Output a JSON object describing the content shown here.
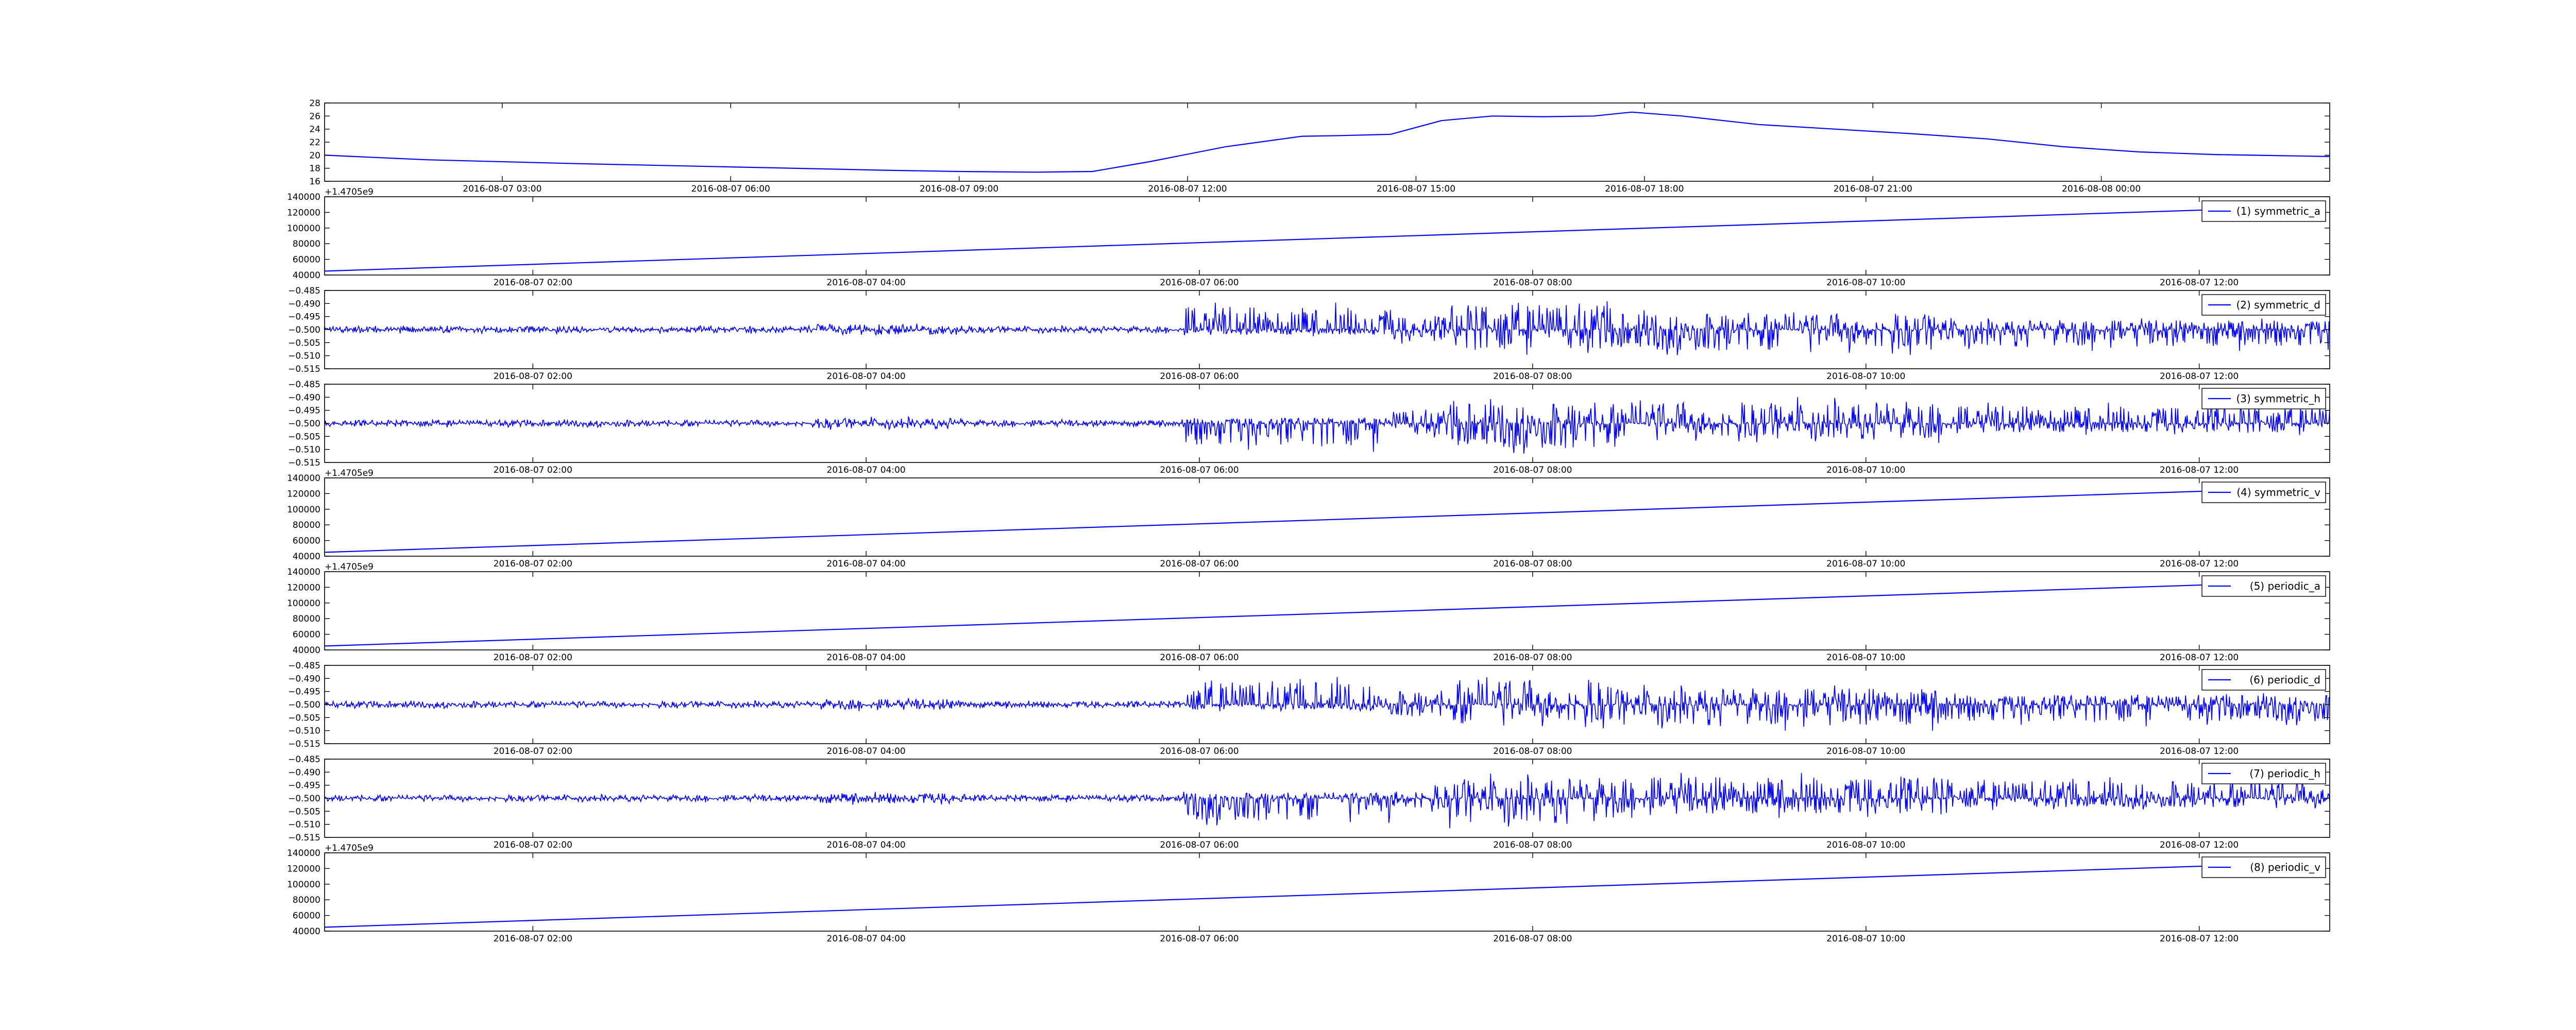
{
  "figure": {
    "background": "#ffffff",
    "line_color": "#0000ff"
  },
  "chart_data": [
    {
      "type": "line",
      "id": "temperature",
      "title": "",
      "xlabel": "",
      "ylabel": "",
      "ylim": [
        16,
        28
      ],
      "yticks": [
        16,
        18,
        20,
        22,
        24,
        26,
        28
      ],
      "ytick_labels": [
        "16",
        "18",
        "20",
        "22",
        "24",
        "26",
        "28"
      ],
      "xlim": [
        "2016-08-07 00:40",
        "2016-08-08 03:00"
      ],
      "xtick_labels": [
        "2016-08-07 03:00",
        "2016-08-07 06:00",
        "2016-08-07 09:00",
        "2016-08-07 12:00",
        "2016-08-07 15:00",
        "2016-08-07 18:00",
        "2016-08-07 21:00",
        "2016-08-08 00:00"
      ],
      "xticks": [
        "2016-08-07 03:00",
        "2016-08-07 06:00",
        "2016-08-07 09:00",
        "2016-08-07 12:00",
        "2016-08-07 15:00",
        "2016-08-07 18:00",
        "2016-08-07 21:00",
        "2016-08-08 00:00"
      ],
      "y_offset_label": "",
      "legend": "",
      "series": [
        {
          "x": [
            "2016-08-07 00:40",
            "2016-08-07 02:00",
            "2016-08-07 04:00",
            "2016-08-07 06:00",
            "2016-08-07 08:00",
            "2016-08-07 09:00",
            "2016-08-07 10:00",
            "2016-08-07 10:45",
            "2016-08-07 11:30",
            "2016-08-07 12:30",
            "2016-08-07 13:30",
            "2016-08-07 14:00",
            "2016-08-07 14:40",
            "2016-08-07 15:20",
            "2016-08-07 16:00",
            "2016-08-07 16:40",
            "2016-08-07 17:20",
            "2016-08-07 17:50",
            "2016-08-07 18:30",
            "2016-08-07 19:30",
            "2016-08-07 20:30",
            "2016-08-07 21:30",
            "2016-08-07 22:30",
            "2016-08-07 23:30",
            "2016-08-08 00:30",
            "2016-08-08 01:30",
            "2016-08-08 03:00"
          ],
          "y": [
            20.0,
            19.3,
            18.7,
            18.2,
            17.7,
            17.5,
            17.4,
            17.5,
            19.0,
            21.3,
            22.9,
            23.0,
            23.2,
            25.3,
            26.0,
            25.9,
            26.0,
            26.6,
            26.0,
            24.7,
            24.0,
            23.3,
            22.5,
            21.3,
            20.5,
            20.1,
            19.8
          ]
        }
      ]
    },
    {
      "type": "line",
      "id": "symmetric_a",
      "ylim": [
        40000,
        140000
      ],
      "yticks": [
        40000,
        60000,
        80000,
        100000,
        120000,
        140000
      ],
      "ytick_labels": [
        "40000",
        "60000",
        "80000",
        "100000",
        "120000",
        "140000"
      ],
      "y_offset_label": "+1.4705e9",
      "xlim": [
        "2016-08-07 00:45",
        "2016-08-07 12:47"
      ],
      "xtick_labels": [
        "2016-08-07 02:00",
        "2016-08-07 04:00",
        "2016-08-07 06:00",
        "2016-08-07 08:00",
        "2016-08-07 10:00",
        "2016-08-07 12:00"
      ],
      "xticks": [
        "2016-08-07 02:00",
        "2016-08-07 04:00",
        "2016-08-07 06:00",
        "2016-08-07 08:00",
        "2016-08-07 10:00",
        "2016-08-07 12:00"
      ],
      "legend": "(1) symmetric_a",
      "series": [
        {
          "name": "(1) symmetric_a",
          "x": [
            "2016-08-07 00:45",
            "2016-08-07 12:45"
          ],
          "y": [
            45000,
            128000
          ]
        }
      ]
    },
    {
      "type": "line",
      "id": "symmetric_d",
      "ylim": [
        -0.515,
        -0.485
      ],
      "yticks": [
        -0.515,
        -0.51,
        -0.505,
        -0.5,
        -0.495,
        -0.49,
        -0.485
      ],
      "ytick_labels": [
        "−0.515",
        "−0.510",
        "−0.505",
        "−0.500",
        "−0.495",
        "−0.490",
        "−0.485"
      ],
      "y_offset_label": "",
      "xlim": [
        "2016-08-07 00:45",
        "2016-08-07 12:47"
      ],
      "xtick_labels": [
        "2016-08-07 02:00",
        "2016-08-07 04:00",
        "2016-08-07 06:00",
        "2016-08-07 08:00",
        "2016-08-07 10:00",
        "2016-08-07 12:00"
      ],
      "xticks": [
        "2016-08-07 02:00",
        "2016-08-07 04:00",
        "2016-08-07 06:00",
        "2016-08-07 08:00",
        "2016-08-07 10:00",
        "2016-08-07 12:00"
      ],
      "legend": "(2) symmetric_d",
      "signal": {
        "baseline": -0.5,
        "pattern": "d"
      }
    },
    {
      "type": "line",
      "id": "symmetric_h",
      "ylim": [
        -0.515,
        -0.485
      ],
      "yticks": [
        -0.515,
        -0.51,
        -0.505,
        -0.5,
        -0.495,
        -0.49,
        -0.485
      ],
      "ytick_labels": [
        "−0.515",
        "−0.510",
        "−0.505",
        "−0.500",
        "−0.495",
        "−0.490",
        "−0.485"
      ],
      "y_offset_label": "",
      "xlim": [
        "2016-08-07 00:45",
        "2016-08-07 12:47"
      ],
      "xtick_labels": [
        "2016-08-07 02:00",
        "2016-08-07 04:00",
        "2016-08-07 06:00",
        "2016-08-07 08:00",
        "2016-08-07 10:00",
        "2016-08-07 12:00"
      ],
      "xticks": [
        "2016-08-07 02:00",
        "2016-08-07 04:00",
        "2016-08-07 06:00",
        "2016-08-07 08:00",
        "2016-08-07 10:00",
        "2016-08-07 12:00"
      ],
      "legend": "(3) symmetric_h",
      "signal": {
        "baseline": -0.5,
        "pattern": "h"
      }
    },
    {
      "type": "line",
      "id": "symmetric_v",
      "ylim": [
        40000,
        140000
      ],
      "yticks": [
        40000,
        60000,
        80000,
        100000,
        120000,
        140000
      ],
      "ytick_labels": [
        "40000",
        "60000",
        "80000",
        "100000",
        "120000",
        "140000"
      ],
      "y_offset_label": "+1.4705e9",
      "xlim": [
        "2016-08-07 00:45",
        "2016-08-07 12:47"
      ],
      "xtick_labels": [
        "2016-08-07 02:00",
        "2016-08-07 04:00",
        "2016-08-07 06:00",
        "2016-08-07 08:00",
        "2016-08-07 10:00",
        "2016-08-07 12:00"
      ],
      "xticks": [
        "2016-08-07 02:00",
        "2016-08-07 04:00",
        "2016-08-07 06:00",
        "2016-08-07 08:00",
        "2016-08-07 10:00",
        "2016-08-07 12:00"
      ],
      "legend": "(4) symmetric_v",
      "series": [
        {
          "name": "(4) symmetric_v",
          "x": [
            "2016-08-07 00:45",
            "2016-08-07 12:45"
          ],
          "y": [
            45000,
            128000
          ]
        }
      ]
    },
    {
      "type": "line",
      "id": "periodic_a",
      "ylim": [
        40000,
        140000
      ],
      "yticks": [
        40000,
        60000,
        80000,
        100000,
        120000,
        140000
      ],
      "ytick_labels": [
        "40000",
        "60000",
        "80000",
        "100000",
        "120000",
        "140000"
      ],
      "y_offset_label": "+1.4705e9",
      "xlim": [
        "2016-08-07 00:45",
        "2016-08-07 12:47"
      ],
      "xtick_labels": [
        "2016-08-07 02:00",
        "2016-08-07 04:00",
        "2016-08-07 06:00",
        "2016-08-07 08:00",
        "2016-08-07 10:00",
        "2016-08-07 12:00"
      ],
      "xticks": [
        "2016-08-07 02:00",
        "2016-08-07 04:00",
        "2016-08-07 06:00",
        "2016-08-07 08:00",
        "2016-08-07 10:00",
        "2016-08-07 12:00"
      ],
      "legend": "(5) periodic_a",
      "series": [
        {
          "name": "(5) periodic_a",
          "x": [
            "2016-08-07 00:45",
            "2016-08-07 12:45"
          ],
          "y": [
            45000,
            128000
          ]
        }
      ]
    },
    {
      "type": "line",
      "id": "periodic_d",
      "ylim": [
        -0.515,
        -0.485
      ],
      "yticks": [
        -0.515,
        -0.51,
        -0.505,
        -0.5,
        -0.495,
        -0.49,
        -0.485
      ],
      "ytick_labels": [
        "−0.515",
        "−0.510",
        "−0.505",
        "−0.500",
        "−0.495",
        "−0.490",
        "−0.485"
      ],
      "y_offset_label": "",
      "xlim": [
        "2016-08-07 00:45",
        "2016-08-07 12:47"
      ],
      "xtick_labels": [
        "2016-08-07 02:00",
        "2016-08-07 04:00",
        "2016-08-07 06:00",
        "2016-08-07 08:00",
        "2016-08-07 10:00",
        "2016-08-07 12:00"
      ],
      "xticks": [
        "2016-08-07 02:00",
        "2016-08-07 04:00",
        "2016-08-07 06:00",
        "2016-08-07 08:00",
        "2016-08-07 10:00",
        "2016-08-07 12:00"
      ],
      "legend": "(6) periodic_d",
      "signal": {
        "baseline": -0.5,
        "pattern": "d"
      }
    },
    {
      "type": "line",
      "id": "periodic_h",
      "ylim": [
        -0.515,
        -0.485
      ],
      "yticks": [
        -0.515,
        -0.51,
        -0.505,
        -0.5,
        -0.495,
        -0.49,
        -0.485
      ],
      "ytick_labels": [
        "−0.515",
        "−0.510",
        "−0.505",
        "−0.500",
        "−0.495",
        "−0.490",
        "−0.485"
      ],
      "y_offset_label": "",
      "xlim": [
        "2016-08-07 00:45",
        "2016-08-07 12:47"
      ],
      "xtick_labels": [
        "2016-08-07 02:00",
        "2016-08-07 04:00",
        "2016-08-07 06:00",
        "2016-08-07 08:00",
        "2016-08-07 10:00",
        "2016-08-07 12:00"
      ],
      "xticks": [
        "2016-08-07 02:00",
        "2016-08-07 04:00",
        "2016-08-07 06:00",
        "2016-08-07 08:00",
        "2016-08-07 10:00",
        "2016-08-07 12:00"
      ],
      "legend": "(7) periodic_h",
      "signal": {
        "baseline": -0.5,
        "pattern": "h"
      }
    },
    {
      "type": "line",
      "id": "periodic_v",
      "ylim": [
        40000,
        140000
      ],
      "yticks": [
        40000,
        60000,
        80000,
        100000,
        120000,
        140000
      ],
      "ytick_labels": [
        "40000",
        "60000",
        "80000",
        "100000",
        "120000",
        "140000"
      ],
      "y_offset_label": "+1.4705e9",
      "xlim": [
        "2016-08-07 00:45",
        "2016-08-07 12:47"
      ],
      "xtick_labels": [
        "2016-08-07 02:00",
        "2016-08-07 04:00",
        "2016-08-07 06:00",
        "2016-08-07 08:00",
        "2016-08-07 10:00",
        "2016-08-07 12:00"
      ],
      "xticks": [
        "2016-08-07 02:00",
        "2016-08-07 04:00",
        "2016-08-07 06:00",
        "2016-08-07 08:00",
        "2016-08-07 10:00",
        "2016-08-07 12:00"
      ],
      "legend": "(8) periodic_v",
      "series": [
        {
          "name": "(8) periodic_v",
          "x": [
            "2016-08-07 00:45",
            "2016-08-07 12:45"
          ],
          "y": [
            45000,
            128000
          ]
        }
      ]
    }
  ]
}
